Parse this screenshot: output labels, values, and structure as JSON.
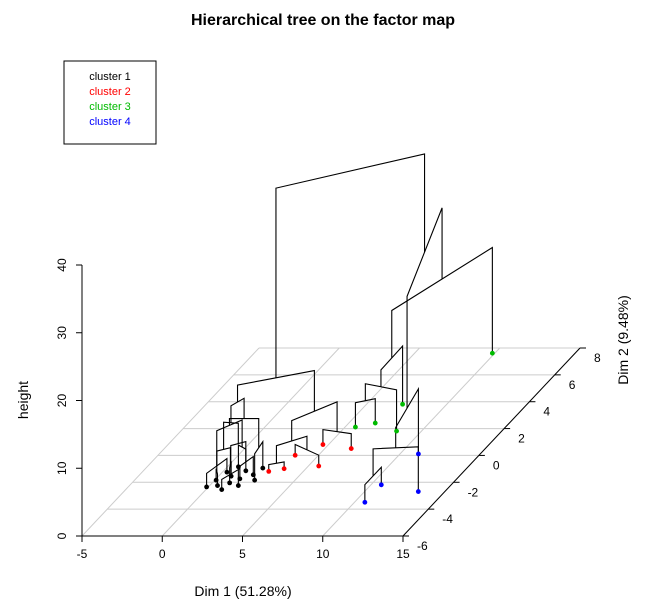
{
  "chart_data": {
    "type": "scatter",
    "title": "Hierarchical tree on the factor map",
    "xlabel": "Dim 1 (51.28%)",
    "ylabel": "Dim 2 (9.48%)",
    "zlabel": "height",
    "x_ticks": [
      "-5",
      "0",
      "5",
      "10",
      "15"
    ],
    "y_ticks": [
      "-6",
      "-4",
      "-2",
      "0",
      "2",
      "4",
      "6",
      "8"
    ],
    "z_ticks": [
      "0",
      "10",
      "20",
      "30",
      "40"
    ],
    "xlim": [
      -5,
      15
    ],
    "ylim": [
      -6,
      8
    ],
    "zlim": [
      0,
      40
    ],
    "grid": true,
    "legend_position": "top-left",
    "legend": [
      {
        "label": "cluster 1",
        "color": "#000000"
      },
      {
        "label": "cluster 2",
        "color": "#ff0000"
      },
      {
        "label": "cluster 3",
        "color": "#00bb00"
      },
      {
        "label": "cluster 4",
        "color": "#0000ff"
      }
    ],
    "points": [
      {
        "cluster": 1,
        "x": 0.6,
        "y": -2.5
      },
      {
        "cluster": 1,
        "x": 1.0,
        "y": -2.9
      },
      {
        "cluster": 1,
        "x": 1.3,
        "y": -2.2
      },
      {
        "cluster": 1,
        "x": 1.6,
        "y": -2.7
      },
      {
        "cluster": 1,
        "x": 2.0,
        "y": -2.4
      },
      {
        "cluster": 1,
        "x": 1.5,
        "y": -3.2
      },
      {
        "cluster": 1,
        "x": 2.3,
        "y": -2.9
      },
      {
        "cluster": 1,
        "x": 2.6,
        "y": -2.1
      },
      {
        "cluster": 1,
        "x": 0.8,
        "y": -1.9
      },
      {
        "cluster": 1,
        "x": 1.9,
        "y": -1.8
      },
      {
        "cluster": 1,
        "x": 3.0,
        "y": -2.5
      },
      {
        "cluster": 1,
        "x": 2.8,
        "y": -1.6
      },
      {
        "cluster": 1,
        "x": 1.2,
        "y": -1.5
      },
      {
        "cluster": 1,
        "x": 0.4,
        "y": -3.0
      },
      {
        "cluster": 2,
        "x": 3.8,
        "y": -2.4
      },
      {
        "cluster": 2,
        "x": 4.6,
        "y": -2.2
      },
      {
        "cluster": 2,
        "x": 4.5,
        "y": -1.2
      },
      {
        "cluster": 2,
        "x": 6.6,
        "y": -2.0
      },
      {
        "cluster": 2,
        "x": 5.6,
        "y": -0.4
      },
      {
        "cluster": 2,
        "x": 7.6,
        "y": -0.7
      },
      {
        "cluster": 3,
        "x": 6.6,
        "y": 0.9
      },
      {
        "cluster": 3,
        "x": 7.6,
        "y": 1.2
      },
      {
        "cluster": 3,
        "x": 9.4,
        "y": 0.6
      },
      {
        "cluster": 3,
        "x": 8.2,
        "y": 2.6
      },
      {
        "cluster": 3,
        "x": 10.8,
        "y": 6.4
      },
      {
        "cluster": 4,
        "x": 11.6,
        "y": -3.4
      },
      {
        "cluster": 4,
        "x": 11.6,
        "y": -4.7
      },
      {
        "cluster": 4,
        "x": 14.3,
        "y": -3.9
      },
      {
        "cluster": 4,
        "x": 12.1,
        "y": -1.1
      }
    ]
  }
}
